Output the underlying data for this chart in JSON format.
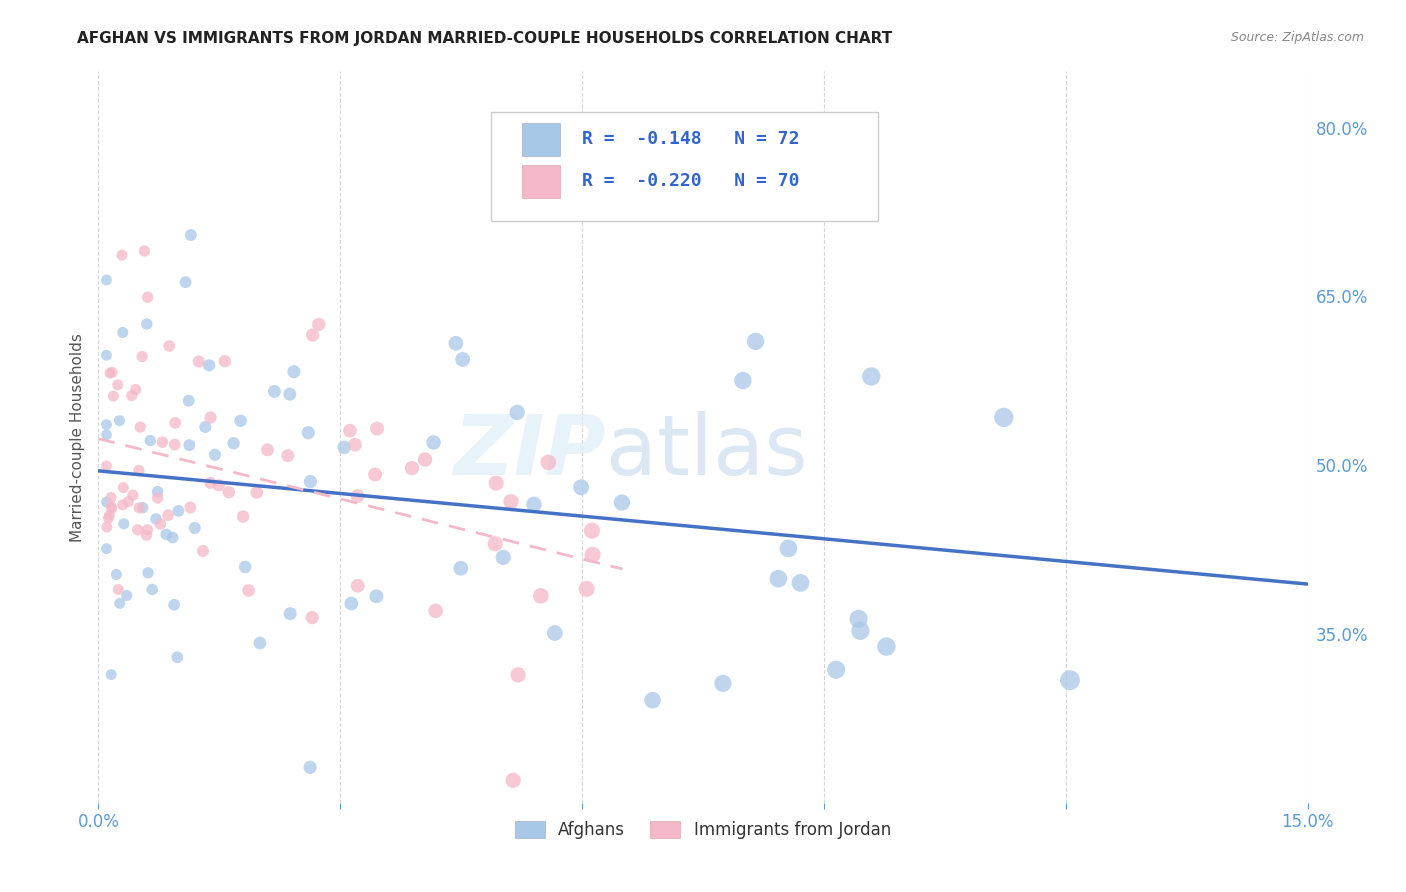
{
  "title": "AFGHAN VS IMMIGRANTS FROM JORDAN MARRIED-COUPLE HOUSEHOLDS CORRELATION CHART",
  "source": "Source: ZipAtlas.com",
  "ylabel": "Married-couple Households",
  "xlim": [
    0.0,
    0.15
  ],
  "ylim": [
    0.2,
    0.85
  ],
  "yticks_right": [
    0.35,
    0.5,
    0.65,
    0.8
  ],
  "legend_label1": "Afghans",
  "legend_label2": "Immigrants from Jordan",
  "R1": -0.148,
  "N1": 72,
  "R2": -0.22,
  "N2": 70,
  "color_blue": "#a8c8e8",
  "color_pink": "#f4b8c8",
  "color_blue_line": "#4472c4",
  "color_pink_line": "#f4b8c8",
  "watermark_zip": "ZIP",
  "watermark_atlas": "atlas",
  "seed": 12
}
